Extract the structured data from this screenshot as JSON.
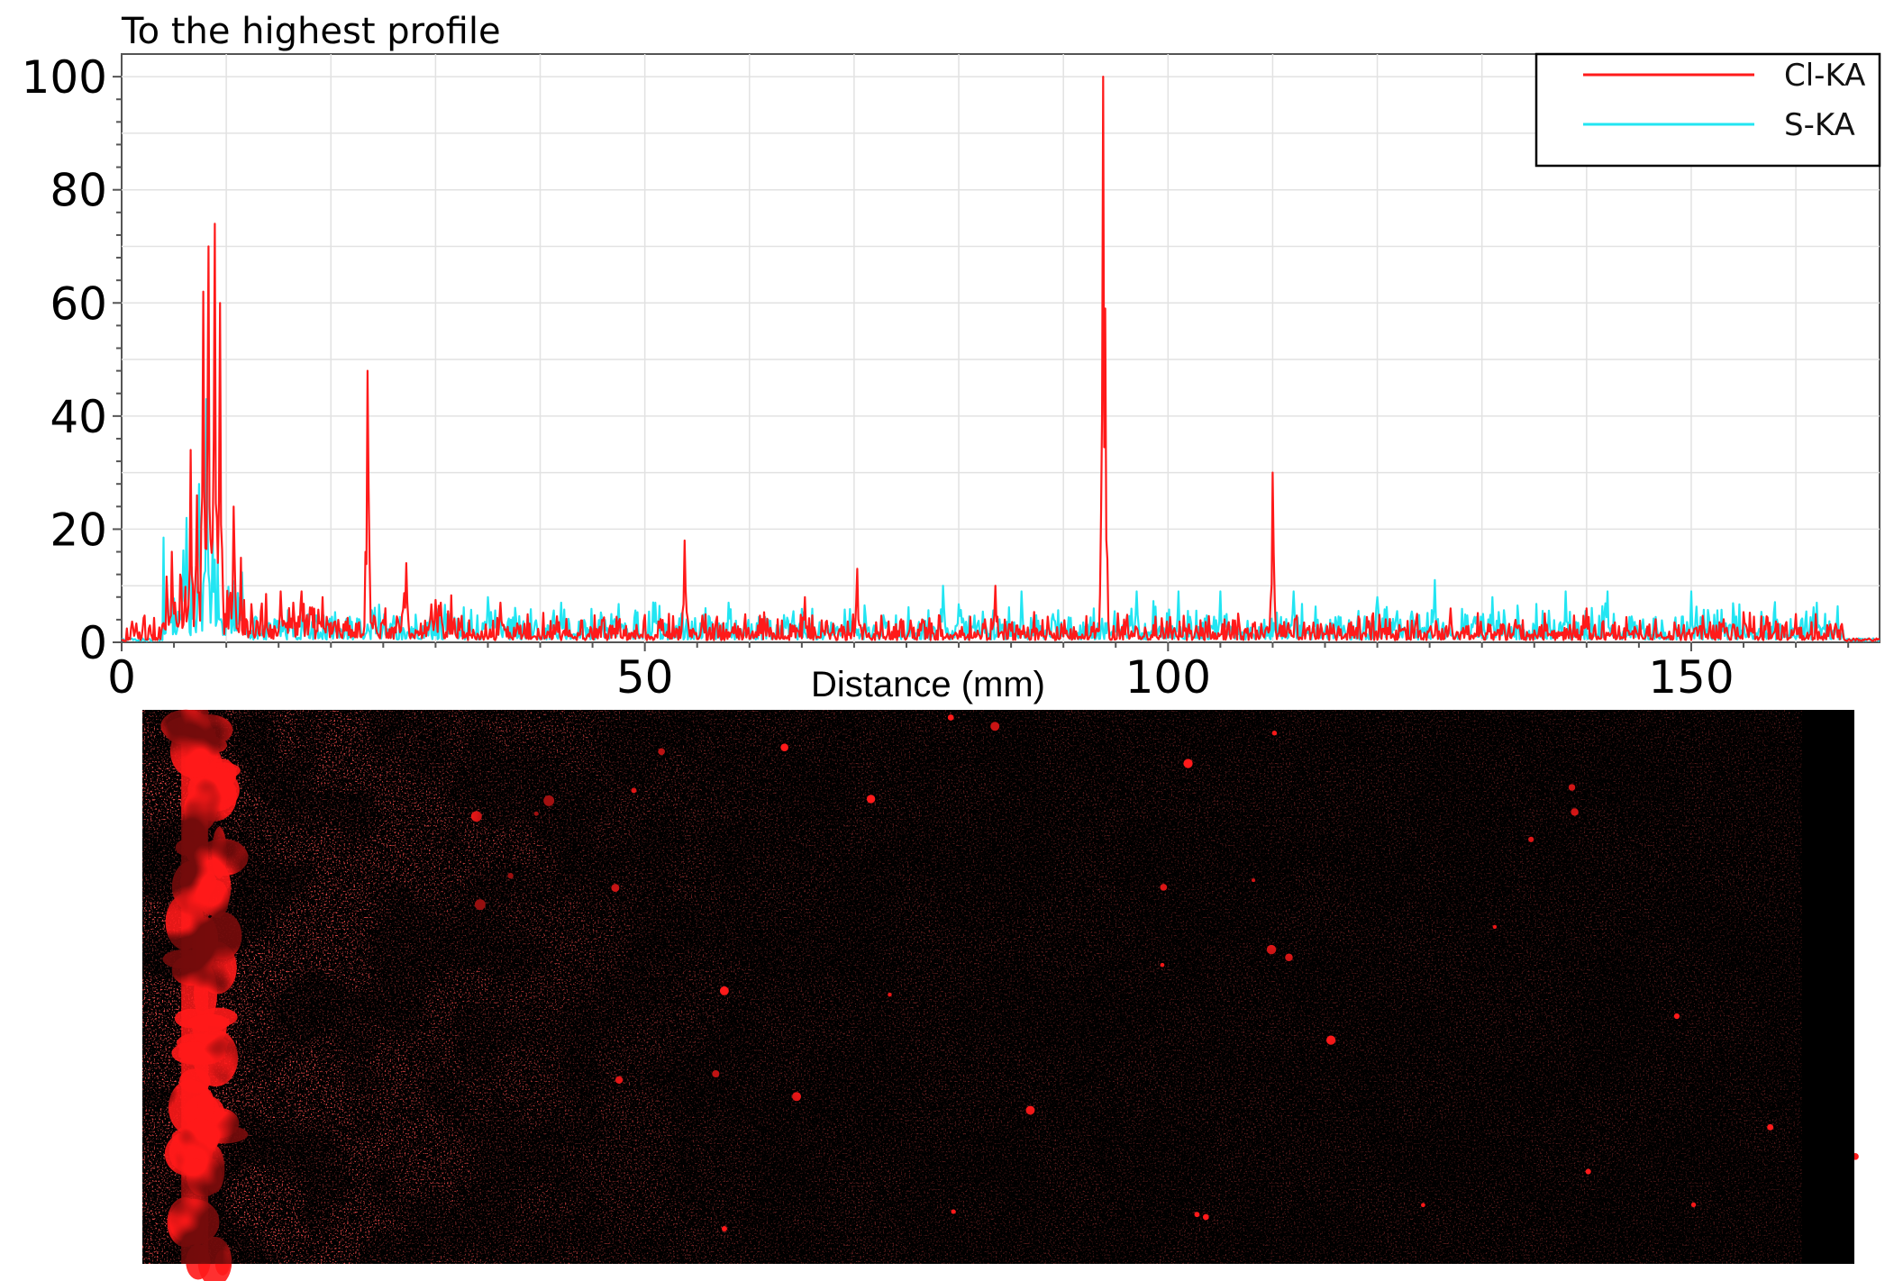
{
  "chart_data": {
    "type": "line",
    "title": "To the highest profile",
    "xlabel": "Distance (mm)",
    "ylabel": "",
    "xlim": [
      0,
      168
    ],
    "ylim": [
      0,
      100
    ],
    "x_ticks": [
      0,
      50,
      100,
      150
    ],
    "y_ticks": [
      0,
      20,
      40,
      60,
      80,
      100
    ],
    "grid": true,
    "legend_placement": "top-right",
    "series": [
      {
        "name": "Cl-KA",
        "color": "#ff1a1a",
        "peaks": [
          {
            "x": 4.8,
            "y": 16
          },
          {
            "x": 5.6,
            "y": 12
          },
          {
            "x": 6.6,
            "y": 34
          },
          {
            "x": 7.2,
            "y": 26
          },
          {
            "x": 7.8,
            "y": 62
          },
          {
            "x": 8.3,
            "y": 70
          },
          {
            "x": 8.9,
            "y": 74
          },
          {
            "x": 9.4,
            "y": 60
          },
          {
            "x": 10.7,
            "y": 24
          },
          {
            "x": 15.2,
            "y": 9
          },
          {
            "x": 17.2,
            "y": 9
          },
          {
            "x": 19.2,
            "y": 8
          },
          {
            "x": 23.5,
            "y": 48
          },
          {
            "x": 27.2,
            "y": 14
          },
          {
            "x": 30.5,
            "y": 7
          },
          {
            "x": 36.2,
            "y": 7
          },
          {
            "x": 53.8,
            "y": 18
          },
          {
            "x": 65.3,
            "y": 8
          },
          {
            "x": 70.3,
            "y": 13
          },
          {
            "x": 83.5,
            "y": 10
          },
          {
            "x": 93.8,
            "y": 100
          },
          {
            "x": 94.0,
            "y": 59
          },
          {
            "x": 110.0,
            "y": 30
          },
          {
            "x": 127.0,
            "y": 6
          },
          {
            "x": 140.0,
            "y": 6
          },
          {
            "x": 160.0,
            "y": 5
          }
        ],
        "baseline": 2.5,
        "x_start": 0.5,
        "x_end": 164.5
      },
      {
        "name": "S-KA",
        "color": "#22e5f2",
        "peaks": [
          {
            "x": 6.2,
            "y": 22
          },
          {
            "x": 7.4,
            "y": 28
          },
          {
            "x": 8.1,
            "y": 43
          },
          {
            "x": 8.7,
            "y": 18
          },
          {
            "x": 9.2,
            "y": 12
          },
          {
            "x": 35.0,
            "y": 8
          },
          {
            "x": 42.0,
            "y": 7
          },
          {
            "x": 51.0,
            "y": 7
          },
          {
            "x": 58.0,
            "y": 7
          },
          {
            "x": 78.5,
            "y": 10
          },
          {
            "x": 86.0,
            "y": 9
          },
          {
            "x": 97.0,
            "y": 9
          },
          {
            "x": 101.0,
            "y": 9
          },
          {
            "x": 105.0,
            "y": 9
          },
          {
            "x": 112.0,
            "y": 9
          },
          {
            "x": 120.0,
            "y": 8
          },
          {
            "x": 125.5,
            "y": 11
          },
          {
            "x": 131.0,
            "y": 8
          },
          {
            "x": 138.0,
            "y": 9
          },
          {
            "x": 142.0,
            "y": 9
          },
          {
            "x": 150.0,
            "y": 9
          },
          {
            "x": 162.0,
            "y": 7
          }
        ],
        "baseline": 3.2,
        "x_start": 4,
        "x_end": 164.5
      }
    ],
    "map_image": {
      "description_color": "#ff1a1a",
      "hotspots_x": [
        3.5,
        5.5,
        7.0,
        14.0,
        22.0,
        29.0
      ]
    }
  }
}
